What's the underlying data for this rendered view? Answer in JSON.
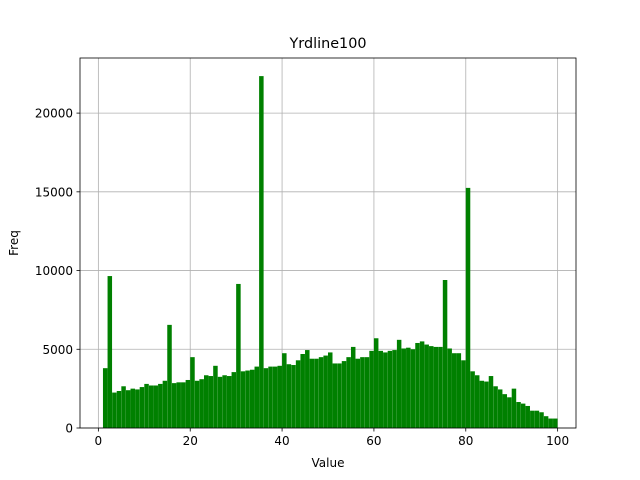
{
  "chart_data": {
    "type": "bar",
    "title": "Yrdline100",
    "xlabel": "Value",
    "ylabel": "Freq",
    "xlim": [
      -4,
      104
    ],
    "ylim": [
      0,
      23500
    ],
    "xticks": [
      0,
      20,
      40,
      60,
      80,
      100
    ],
    "yticks": [
      0,
      5000,
      10000,
      15000,
      20000
    ],
    "grid": true,
    "bar_color": "#008000",
    "bins": [
      1,
      2,
      3,
      4,
      5,
      6,
      7,
      8,
      9,
      10,
      11,
      12,
      13,
      14,
      15,
      16,
      17,
      18,
      19,
      20,
      21,
      22,
      23,
      24,
      25,
      26,
      27,
      28,
      29,
      30,
      31,
      32,
      33,
      34,
      35,
      36,
      37,
      38,
      39,
      40,
      41,
      42,
      43,
      44,
      45,
      46,
      47,
      48,
      49,
      50,
      51,
      52,
      53,
      54,
      55,
      56,
      57,
      58,
      59,
      60,
      61,
      62,
      63,
      64,
      65,
      66,
      67,
      68,
      69,
      70,
      71,
      72,
      73,
      74,
      75,
      76,
      77,
      78,
      79,
      80,
      81,
      82,
      83,
      84,
      85,
      86,
      87,
      88,
      89,
      90,
      91,
      92,
      93,
      94,
      95,
      96,
      97,
      98,
      99
    ],
    "values": [
      3800,
      9650,
      2250,
      2350,
      2650,
      2400,
      2500,
      2450,
      2600,
      2800,
      2700,
      2700,
      2800,
      3000,
      6550,
      2850,
      2900,
      2900,
      3050,
      4500,
      3000,
      3100,
      3350,
      3300,
      3950,
      3250,
      3350,
      3300,
      3550,
      9150,
      3600,
      3650,
      3700,
      3900,
      22350,
      3800,
      3900,
      3900,
      3950,
      4750,
      4050,
      4000,
      4300,
      4700,
      4950,
      4400,
      4400,
      4500,
      4600,
      4800,
      4100,
      4100,
      4250,
      4500,
      5150,
      4400,
      4500,
      4500,
      4900,
      5700,
      4900,
      4800,
      4900,
      4950,
      5600,
      5050,
      5100,
      5000,
      5400,
      5500,
      5300,
      5200,
      5150,
      5150,
      9400,
      5050,
      4750,
      4750,
      4300,
      15250,
      3600,
      3350,
      3000,
      2950,
      3300,
      2650,
      2450,
      2150,
      1950,
      2500,
      1650,
      1550,
      1400,
      1100,
      1100,
      1000,
      750,
      600,
      600
    ]
  }
}
